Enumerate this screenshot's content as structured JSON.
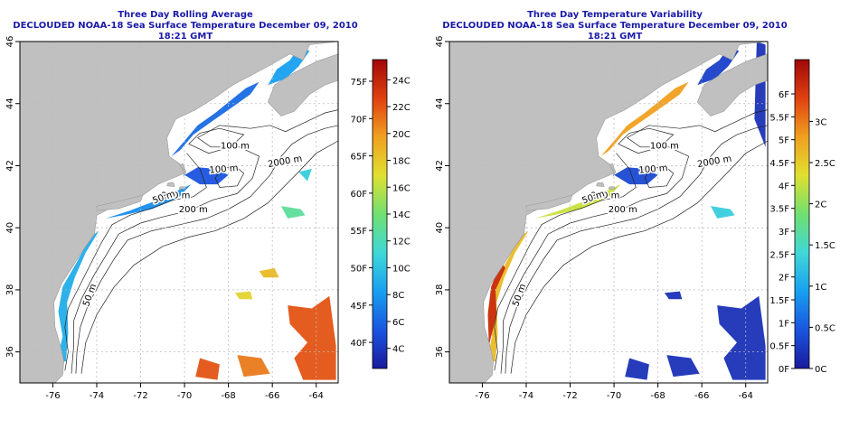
{
  "panels": [
    {
      "title": "Three Day Rolling Average",
      "subtitle": "DECLOUDED NOAA-18 Sea Surface Temperature December 09, 2010 18:21 GMT",
      "colorbar": {
        "stops": [
          "#1a1a9c",
          "#1a55e0",
          "#18a0f0",
          "#40d8d8",
          "#70e070",
          "#e0e030",
          "#f0a020",
          "#e04010",
          "#a00808"
        ],
        "f_labels": [
          "40F",
          "45F",
          "50F",
          "55F",
          "60F",
          "65F",
          "70F",
          "75F"
        ],
        "f_values": [
          40,
          45,
          50,
          55,
          60,
          65,
          70,
          75
        ],
        "c_labels": [
          "4C",
          "6C",
          "8C",
          "10C",
          "12C",
          "14C",
          "16C",
          "18C",
          "20C",
          "22C",
          "24C"
        ],
        "c_values": [
          4,
          6,
          8,
          10,
          12,
          14,
          16,
          18,
          20,
          22,
          24
        ],
        "c_range": [
          2.5,
          25.5
        ]
      }
    },
    {
      "title": "Three Day Temperature Variability",
      "subtitle": "DECLOUDED NOAA-18 Sea Surface Temperature December 09, 2010 18:21 GMT",
      "colorbar": {
        "stops": [
          "#1a1a9c",
          "#1a55e0",
          "#18a0f0",
          "#40d8d8",
          "#70e070",
          "#e0e030",
          "#f0a020",
          "#e04010",
          "#a00808"
        ],
        "f_labels": [
          "0F",
          "0.5F",
          "1F",
          "1.5F",
          "2F",
          "2.5F",
          "3F",
          "3.5F",
          "4F",
          "4.5F",
          "5F",
          "5.5F",
          "6F"
        ],
        "f_values": [
          0,
          0.5,
          1,
          1.5,
          2,
          2.5,
          3,
          3.5,
          4,
          4.5,
          5,
          5.5,
          6
        ],
        "c_labels": [
          "0C",
          "0.5C",
          "1C",
          "1.5C",
          "2C",
          "2.5C",
          "3C"
        ],
        "c_values": [
          0,
          0.5,
          1,
          1.5,
          2,
          2.5,
          3
        ],
        "c_range": [
          0,
          3.75
        ]
      }
    }
  ],
  "axes": {
    "x_labels": [
      "-76",
      "-74",
      "-72",
      "-70",
      "-68",
      "-66",
      "-64"
    ],
    "x_values": [
      -76,
      -74,
      -72,
      -70,
      -68,
      -66,
      -64
    ],
    "y_labels": [
      "36",
      "38",
      "40",
      "42",
      "44",
      "46"
    ],
    "y_values": [
      36,
      38,
      40,
      42,
      44,
      46
    ],
    "lon_range": [
      -77.5,
      -63
    ],
    "lat_range": [
      35,
      46
    ]
  },
  "contour_labels": [
    "100 m",
    "2000 m",
    "100 m",
    "200 m",
    "200 m",
    "50 m",
    "50 m"
  ],
  "colors": {
    "land": "#c0c0c0",
    "ocean": "#ffffff",
    "title": "#1a1aa8",
    "grid": "#bbbbbb"
  }
}
